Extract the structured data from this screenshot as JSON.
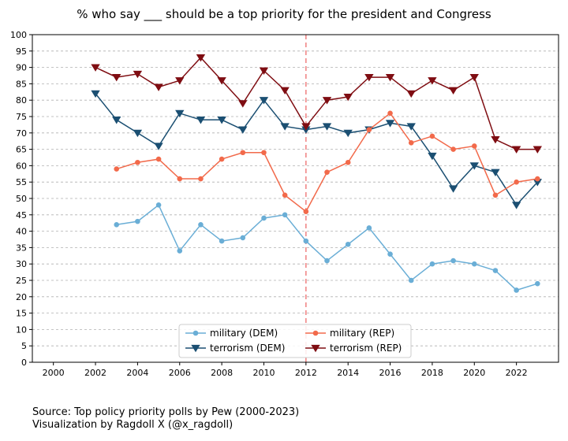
{
  "chart_data": {
    "type": "line",
    "title": "% who say ___ should be a top priority for the president and Congress",
    "xlabel": "",
    "ylabel": "",
    "xlim": [
      1999.0,
      2024.0
    ],
    "ylim": [
      0,
      100
    ],
    "xticks": [
      2000,
      2002,
      2004,
      2006,
      2008,
      2010,
      2012,
      2014,
      2016,
      2018,
      2020,
      2022
    ],
    "yticks": [
      0,
      5,
      10,
      15,
      20,
      25,
      30,
      35,
      40,
      45,
      50,
      55,
      60,
      65,
      70,
      75,
      80,
      85,
      90,
      95,
      100
    ],
    "grid": "horizontal dashed",
    "vline": {
      "x": 2012,
      "color": "#f08080"
    },
    "legend_position": "lower-center",
    "series": [
      {
        "name": "military (DEM)",
        "color": "#6aaed6",
        "marker": "circle",
        "x": [
          2003,
          2004,
          2005,
          2006,
          2007,
          2008,
          2009,
          2010,
          2011,
          2012,
          2013,
          2014,
          2015,
          2016,
          2017,
          2018,
          2019,
          2020,
          2021,
          2022,
          2023
        ],
        "values": [
          42,
          43,
          48,
          34,
          42,
          37,
          38,
          44,
          45,
          37,
          31,
          36,
          41,
          33,
          25,
          30,
          31,
          30,
          28,
          22,
          24
        ]
      },
      {
        "name": "terrorism (DEM)",
        "color": "#1b4f72",
        "marker": "triangle-down",
        "x": [
          2002,
          2003,
          2004,
          2005,
          2006,
          2007,
          2008,
          2009,
          2010,
          2011,
          2012,
          2013,
          2014,
          2015,
          2016,
          2017,
          2018,
          2019,
          2020,
          2021,
          2022,
          2023
        ],
        "values": [
          82,
          74,
          70,
          66,
          76,
          74,
          74,
          71,
          80,
          72,
          71,
          72,
          70,
          71,
          73,
          72,
          63,
          53,
          60,
          58,
          48,
          55
        ]
      },
      {
        "name": "military (REP)",
        "color": "#f26a4b",
        "marker": "circle",
        "x": [
          2003,
          2004,
          2005,
          2006,
          2007,
          2008,
          2009,
          2010,
          2011,
          2012,
          2013,
          2014,
          2015,
          2016,
          2017,
          2018,
          2019,
          2020,
          2021,
          2022,
          2023
        ],
        "values": [
          59,
          61,
          62,
          56,
          56,
          62,
          64,
          64,
          51,
          46,
          58,
          61,
          71,
          76,
          67,
          69,
          65,
          66,
          51,
          55,
          56
        ]
      },
      {
        "name": "terrorism (REP)",
        "color": "#7f0d12",
        "marker": "triangle-down",
        "x": [
          2002,
          2003,
          2004,
          2005,
          2006,
          2007,
          2008,
          2009,
          2010,
          2011,
          2012,
          2013,
          2014,
          2015,
          2016,
          2017,
          2018,
          2019,
          2020,
          2021,
          2022,
          2023
        ],
        "values": [
          90,
          87,
          88,
          84,
          86,
          93,
          86,
          79,
          89,
          83,
          72,
          80,
          81,
          87,
          87,
          82,
          86,
          83,
          87,
          68,
          65,
          65
        ]
      }
    ]
  },
  "footer": {
    "source": "Source: Top policy priority polls by Pew (2000-2023)",
    "credit": "Visualization by Ragdoll X (@x_ragdoll)"
  }
}
